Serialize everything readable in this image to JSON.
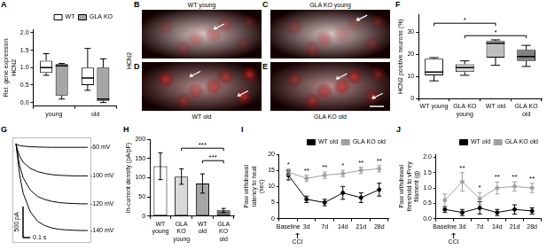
{
  "chart_data": [
    {
      "panel": "A",
      "type": "box",
      "y_label": "Rel. gene expression HCN2",
      "categories": [
        "young",
        "old"
      ],
      "series": [
        {
          "name": "WT",
          "color": "#ffffff",
          "min": [
            0.78,
            0.35
          ],
          "q1": [
            0.85,
            0.5
          ],
          "median": [
            1.0,
            0.7
          ],
          "q3": [
            1.2,
            1.0
          ],
          "max": [
            1.4,
            1.55
          ]
        },
        {
          "name": "GLA KO",
          "color": "#a6a6a6",
          "min": [
            0.1,
            0.0
          ],
          "q1": [
            0.2,
            0.05
          ],
          "median": [
            1.05,
            0.1
          ],
          "q3": [
            1.1,
            1.0
          ],
          "max": [
            1.12,
            1.25
          ]
        }
      ],
      "ylim": [
        -0.1,
        2.1
      ],
      "yticks": [
        {
          "value": 0,
          "label": "0.0"
        },
        {
          "value": 0.5,
          "label": "0.5"
        },
        {
          "value": 1,
          "label": "1.0"
        },
        {
          "value": 1.5,
          "label": "1.5"
        },
        {
          "value": 2,
          "label": "2.0"
        }
      ],
      "grid": false,
      "legend": "top right"
    },
    {
      "panel": "F",
      "type": "box",
      "y_label": "HCN2 positive neurons (%)",
      "categories": [
        "WT young",
        "GLA KO young",
        "WT old",
        "GLA KO old"
      ],
      "series": [
        {
          "colors": [
            "#ffffff",
            "#d9d9d9",
            "#bfbfbf",
            "#808080"
          ],
          "min": [
            8,
            10.5,
            15,
            14.5
          ],
          "q1": [
            10.5,
            12,
            18.5,
            17
          ],
          "median": [
            12,
            14,
            25,
            19
          ],
          "q3": [
            18,
            15.5,
            26,
            22
          ],
          "max": [
            18.5,
            17,
            26.5,
            24
          ]
        }
      ],
      "ylim": [
        0,
        38
      ],
      "yticks": [
        0,
        10,
        20,
        30
      ],
      "grid": false,
      "significance": [
        {
          "from": "WT young",
          "to": "WT old",
          "label": "*"
        },
        {
          "from": "GLA KO young",
          "to": "GLA KO old",
          "label": "*"
        }
      ]
    },
    {
      "panel": "G",
      "type": "line",
      "x": [
        0,
        0.02,
        0.05,
        0.1,
        0.2,
        0.3,
        0.4,
        0.5,
        0.6,
        0.7,
        0.8,
        0.9,
        1.0
      ],
      "series": [
        {
          "name": "-60 mV",
          "color": "#000000",
          "values": [
            0,
            -20,
            -30,
            -40,
            -50,
            -55,
            -58,
            -60,
            -60,
            -60,
            -60,
            -60,
            -60
          ]
        },
        {
          "name": "-100 mV",
          "color": "#000000",
          "values": [
            0,
            -100,
            -200,
            -300,
            -400,
            -450,
            -480,
            -500,
            -510,
            -515,
            -520,
            -520,
            -520
          ]
        },
        {
          "name": "-120 mV",
          "color": "#000000",
          "values": [
            0,
            -150,
            -350,
            -550,
            -750,
            -850,
            -900,
            -930,
            -950,
            -960,
            -965,
            -970,
            -970
          ]
        },
        {
          "name": "-140 mV",
          "color": "#000000",
          "values": [
            0,
            -200,
            -500,
            -800,
            -1100,
            -1250,
            -1320,
            -1360,
            -1380,
            -1390,
            -1395,
            -1400,
            -1400
          ]
        }
      ],
      "xlim": [
        -0.05,
        1.05
      ],
      "ylim": [
        -1600,
        100
      ],
      "tick_labels": false,
      "grid": false,
      "scale_bars": [
        {
          "axis": "y",
          "value": 500,
          "label": "500 pA"
        },
        {
          "axis": "x",
          "value": 0.1,
          "label": "0.1 s"
        }
      ]
    },
    {
      "panel": "H",
      "type": "bar",
      "y_label": "Ih-current density (pA/pF)",
      "categories": [
        "WT young",
        "GLA KO young",
        "WT old",
        "GLA KO old"
      ],
      "values": [
        130,
        103,
        85,
        15
      ],
      "errors": [
        35,
        20,
        25,
        5
      ],
      "colors": [
        "#ffffff",
        "#d9d9d9",
        "#a6a6a6",
        "#6e6e6e"
      ],
      "ylim": [
        0,
        200
      ],
      "yticks": [
        0,
        50,
        100,
        150,
        200
      ],
      "grid": false,
      "significance": [
        {
          "from": "GLA KO young",
          "to": "GLA KO old",
          "label": "***"
        },
        {
          "from": "WT old",
          "to": "GLA KO old",
          "label": "***"
        }
      ]
    },
    {
      "panel": "I",
      "type": "line",
      "y_label": "Paw withdrawal latency to heat (sec)",
      "categories": [
        "Baseline",
        "3d",
        "7d",
        "14d",
        "21d",
        "28d"
      ],
      "series": [
        {
          "name": "WT old",
          "color": "#000000",
          "marker": "circle",
          "values": [
            13.5,
            6,
            5,
            8,
            6.5,
            9
          ],
          "errors": [
            1.5,
            1,
            1,
            2,
            1.5,
            2
          ]
        },
        {
          "name": "GLA KO old",
          "color": "#a0a0a0",
          "marker": "circle",
          "values": [
            14.5,
            12.5,
            13.5,
            14,
            15,
            15.5
          ],
          "errors": [
            1,
            1,
            1,
            1,
            1,
            1
          ]
        }
      ],
      "ylim": [
        0,
        20
      ],
      "yticks": [
        0,
        5,
        10,
        15,
        20
      ],
      "grid": false,
      "legend": "top right",
      "significance_marks": [
        "*",
        "**",
        "**",
        "*",
        "**",
        "**"
      ],
      "annotation": "CCI"
    },
    {
      "panel": "J",
      "type": "line",
      "y_label": "Paw withdrawal threshold to vFrey filament (g)",
      "categories": [
        "Baseline",
        "3d",
        "7d",
        "14d",
        "21d",
        "28d"
      ],
      "series": [
        {
          "name": "WT old",
          "color": "#000000",
          "marker": "circle",
          "values": [
            0.3,
            0.2,
            0.35,
            0.2,
            0.3,
            0.25
          ],
          "errors": [
            0.1,
            0.1,
            0.2,
            0.1,
            0.15,
            0.1
          ]
        },
        {
          "name": "GLA KO old",
          "color": "#a0a0a0",
          "marker": "circle",
          "values": [
            0.6,
            1.2,
            0.65,
            1.0,
            1.05,
            1.0
          ],
          "errors": [
            0.2,
            0.3,
            0.2,
            0.2,
            0.15,
            0.15
          ]
        }
      ],
      "ylim": [
        0,
        2.1
      ],
      "yticks": [
        {
          "value": 0,
          "label": "0.0"
        },
        {
          "value": 0.5,
          "label": "0.5"
        },
        {
          "value": 1,
          "label": "1.0"
        },
        {
          "value": 1.5,
          "label": "1.5"
        },
        {
          "value": 2,
          "label": "2.0"
        }
      ],
      "grid": false,
      "legend": "top right",
      "significance_marks": [
        null,
        "**",
        "*",
        "**",
        "**",
        "**"
      ],
      "annotation": "CCI"
    }
  ],
  "micrographs": {
    "stain": "HCN2",
    "panels": [
      {
        "panel": "B",
        "label": "WT young"
      },
      {
        "panel": "C",
        "label": "GLA KO young"
      },
      {
        "panel": "D",
        "label": "WT old"
      },
      {
        "panel": "E",
        "label": "GLA KO old"
      }
    ]
  }
}
